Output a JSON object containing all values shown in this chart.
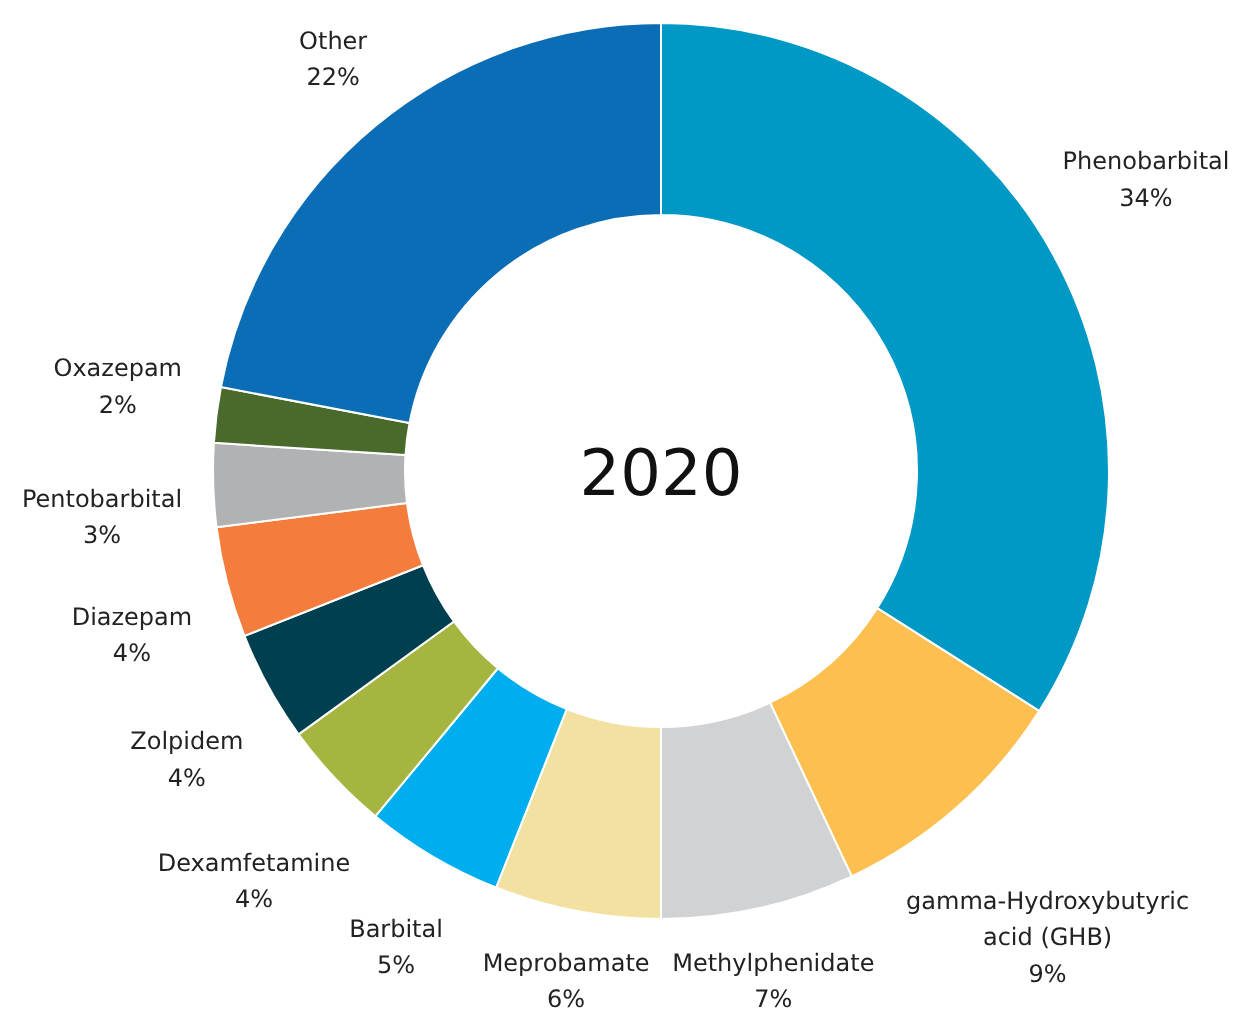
{
  "chart_data": {
    "type": "donut",
    "title": "2020",
    "categories": [
      "Phenobarbital",
      "gamma-Hydroxybutyric acid (GHB)",
      "Methylphenidate",
      "Meprobamate",
      "Barbital",
      "Dexamfetamine",
      "Zolpidem",
      "Diazepam",
      "Pentobarbital",
      "Oxazepam",
      "Other"
    ],
    "values": [
      34,
      9,
      7,
      6,
      5,
      4,
      4,
      4,
      3,
      2,
      22
    ],
    "colors": [
      "#0099c6",
      "#fdbf4f",
      "#d1d2d4",
      "#f3e1a2",
      "#00aeef",
      "#a6b53f",
      "#003f50",
      "#f47c3c",
      "#b1b2b4",
      "#4a6a2b",
      "#0a6db6"
    ],
    "value_labels": [
      "34%",
      "9%",
      "7%",
      "6%",
      "5%",
      "4%",
      "4%",
      "4%",
      "3%",
      "2%",
      "22%"
    ]
  }
}
